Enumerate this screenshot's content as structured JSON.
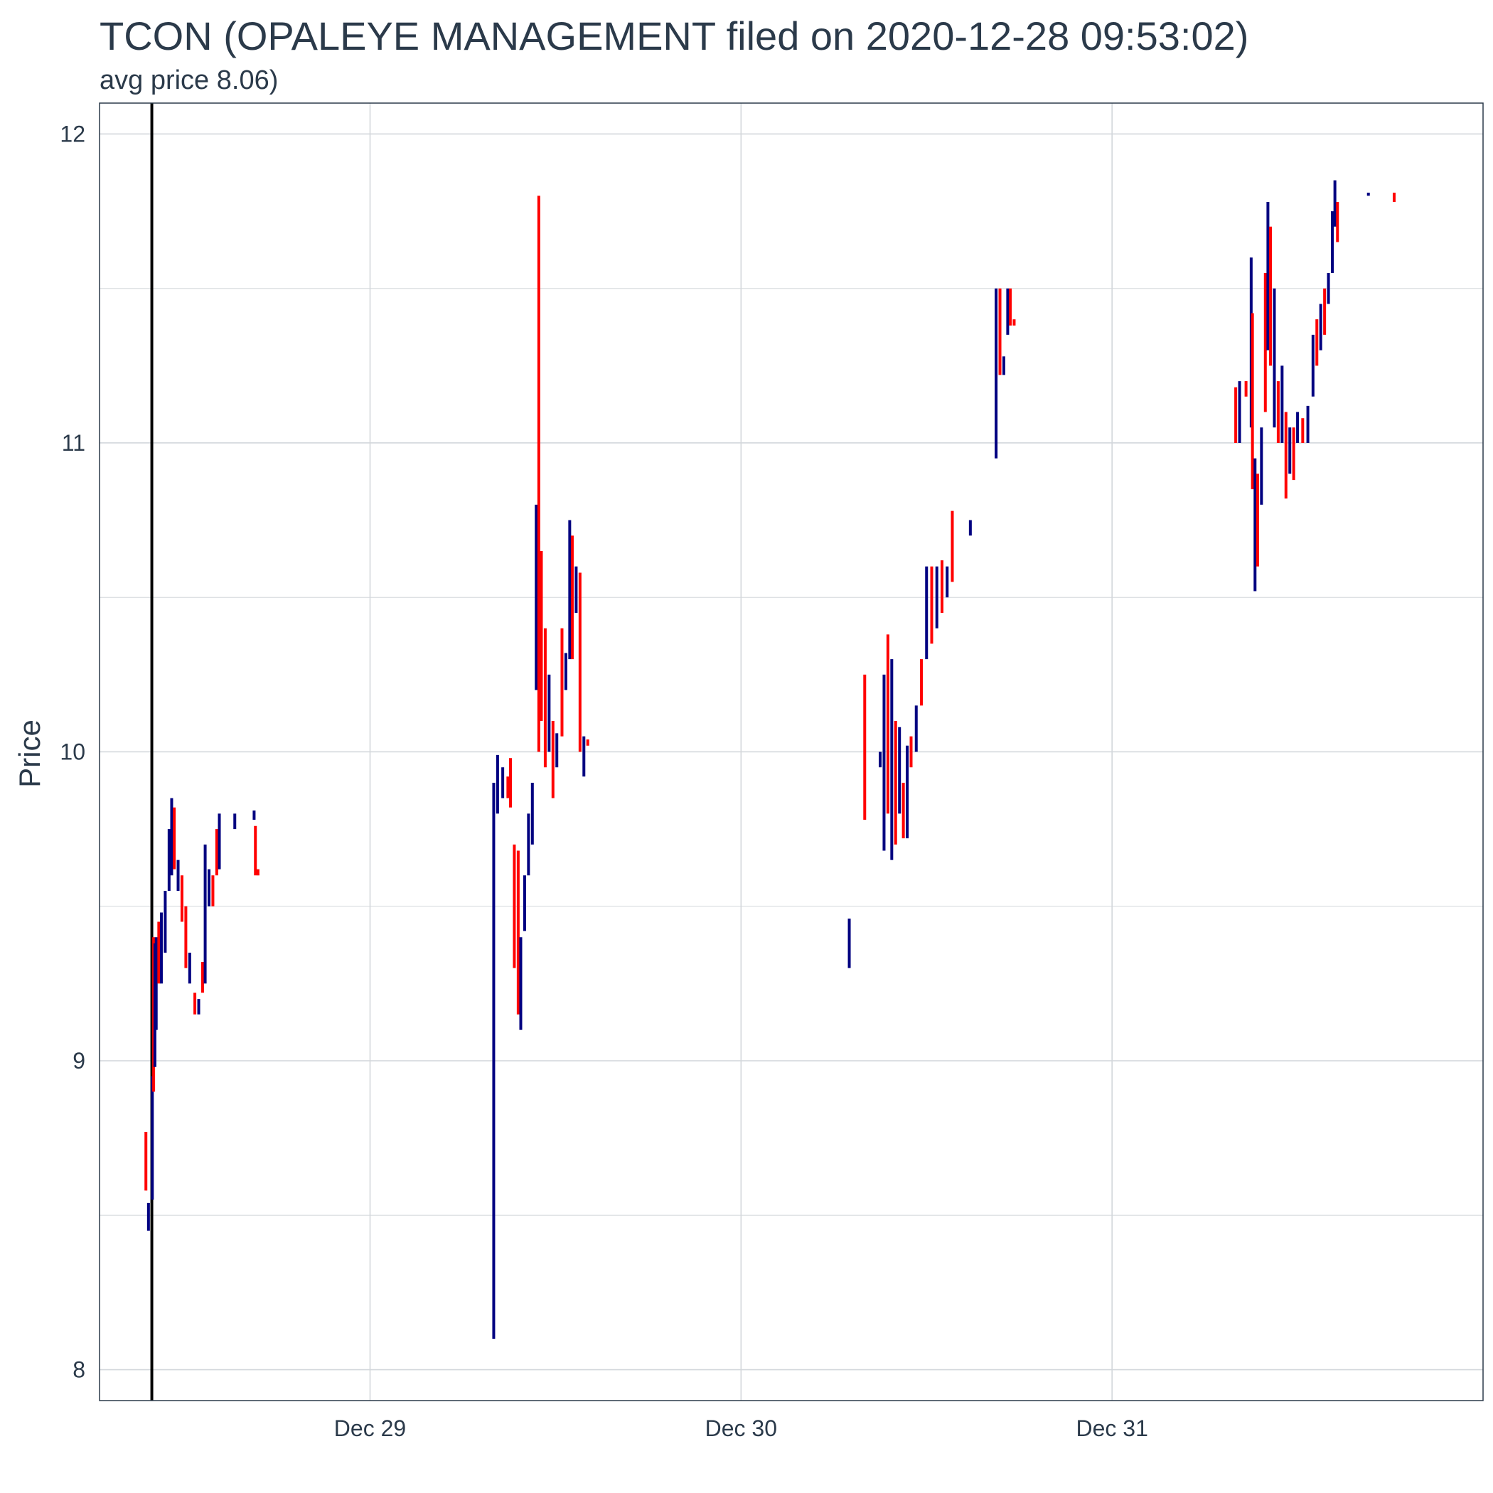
{
  "chart_data": {
    "type": "candlestick",
    "title": "TCON (OPALEYE MANAGEMENT filed on 2020-12-28 09:53:02)",
    "subtitle": "avg price 8.06)",
    "xlabel": "",
    "ylabel": "Price",
    "x_range": [
      "2020-12-28 06:30",
      "2021-01-01 00:00"
    ],
    "ylim": [
      7.9,
      12.1
    ],
    "y_ticks": [
      8,
      9,
      10,
      11,
      12
    ],
    "x_ticks": [
      {
        "label": "Dec 29",
        "value": "2020-12-29 00:00"
      },
      {
        "label": "Dec 30",
        "value": "2020-12-30 00:00"
      },
      {
        "label": "Dec 31",
        "value": "2020-12-31 00:00"
      }
    ],
    "grid": true,
    "filing_marker": "2020-12-28 09:53",
    "colors": {
      "up": "#000080",
      "down": "#ff0000",
      "marker": "#000000",
      "grid": "#d3d7db",
      "frame": "#2b3a4a"
    },
    "bars": [
      {
        "t": "2020-12-28 09:30",
        "low": 8.58,
        "high": 8.77,
        "dir": "down"
      },
      {
        "t": "2020-12-28 09:40",
        "low": 8.45,
        "high": 8.54,
        "dir": "up"
      },
      {
        "t": "2020-12-28 09:55",
        "low": 8.55,
        "high": 8.95,
        "dir": "up"
      },
      {
        "t": "2020-12-28 10:00",
        "low": 8.9,
        "high": 9.4,
        "dir": "down"
      },
      {
        "t": "2020-12-28 10:05",
        "low": 8.98,
        "high": 9.38,
        "dir": "up"
      },
      {
        "t": "2020-12-28 10:10",
        "low": 9.1,
        "high": 9.4,
        "dir": "up"
      },
      {
        "t": "2020-12-28 10:20",
        "low": 9.25,
        "high": 9.45,
        "dir": "down"
      },
      {
        "t": "2020-12-28 10:30",
        "low": 9.25,
        "high": 9.48,
        "dir": "up"
      },
      {
        "t": "2020-12-28 10:45",
        "low": 9.35,
        "high": 9.55,
        "dir": "up"
      },
      {
        "t": "2020-12-28 11:00",
        "low": 9.55,
        "high": 9.75,
        "dir": "up"
      },
      {
        "t": "2020-12-28 11:10",
        "low": 9.6,
        "high": 9.85,
        "dir": "up"
      },
      {
        "t": "2020-12-28 11:20",
        "low": 9.62,
        "high": 9.82,
        "dir": "down"
      },
      {
        "t": "2020-12-28 11:35",
        "low": 9.55,
        "high": 9.65,
        "dir": "up"
      },
      {
        "t": "2020-12-28 11:50",
        "low": 9.45,
        "high": 9.6,
        "dir": "down"
      },
      {
        "t": "2020-12-28 12:05",
        "low": 9.3,
        "high": 9.5,
        "dir": "down"
      },
      {
        "t": "2020-12-28 12:20",
        "low": 9.25,
        "high": 9.35,
        "dir": "up"
      },
      {
        "t": "2020-12-28 12:40",
        "low": 9.15,
        "high": 9.22,
        "dir": "down"
      },
      {
        "t": "2020-12-28 12:55",
        "low": 9.15,
        "high": 9.2,
        "dir": "up"
      },
      {
        "t": "2020-12-28 13:10",
        "low": 9.22,
        "high": 9.32,
        "dir": "down"
      },
      {
        "t": "2020-12-28 13:20",
        "low": 9.25,
        "high": 9.7,
        "dir": "up"
      },
      {
        "t": "2020-12-28 13:35",
        "low": 9.5,
        "high": 9.62,
        "dir": "up"
      },
      {
        "t": "2020-12-28 13:50",
        "low": 9.5,
        "high": 9.6,
        "dir": "down"
      },
      {
        "t": "2020-12-28 14:05",
        "low": 9.6,
        "high": 9.75,
        "dir": "down"
      },
      {
        "t": "2020-12-28 14:15",
        "low": 9.62,
        "high": 9.8,
        "dir": "up"
      },
      {
        "t": "2020-12-28 15:15",
        "low": 9.75,
        "high": 9.8,
        "dir": "up"
      },
      {
        "t": "2020-12-28 16:30",
        "low": 9.78,
        "high": 9.81,
        "dir": "up"
      },
      {
        "t": "2020-12-28 16:35",
        "low": 9.6,
        "high": 9.76,
        "dir": "down"
      },
      {
        "t": "2020-12-28 16:45",
        "low": 9.6,
        "high": 9.62,
        "dir": "down"
      },
      {
        "t": "2020-12-29 08:00",
        "low": 8.1,
        "high": 9.9,
        "dir": "up"
      },
      {
        "t": "2020-12-29 08:15",
        "low": 9.8,
        "high": 9.99,
        "dir": "up"
      },
      {
        "t": "2020-12-29 08:35",
        "low": 9.85,
        "high": 9.95,
        "dir": "up"
      },
      {
        "t": "2020-12-29 08:55",
        "low": 9.85,
        "high": 9.92,
        "dir": "down"
      },
      {
        "t": "2020-12-29 09:05",
        "low": 9.82,
        "high": 9.98,
        "dir": "down"
      },
      {
        "t": "2020-12-29 09:20",
        "low": 9.3,
        "high": 9.7,
        "dir": "down"
      },
      {
        "t": "2020-12-29 09:35",
        "low": 9.15,
        "high": 9.68,
        "dir": "down"
      },
      {
        "t": "2020-12-29 09:45",
        "low": 9.1,
        "high": 9.4,
        "dir": "up"
      },
      {
        "t": "2020-12-29 10:00",
        "low": 9.42,
        "high": 9.6,
        "dir": "up"
      },
      {
        "t": "2020-12-29 10:15",
        "low": 9.6,
        "high": 9.8,
        "dir": "up"
      },
      {
        "t": "2020-12-29 10:30",
        "low": 9.7,
        "high": 9.9,
        "dir": "up"
      },
      {
        "t": "2020-12-29 10:45",
        "low": 10.2,
        "high": 10.8,
        "dir": "up"
      },
      {
        "t": "2020-12-29 10:55",
        "low": 10.0,
        "high": 11.8,
        "dir": "down"
      },
      {
        "t": "2020-12-29 11:05",
        "low": 10.1,
        "high": 10.65,
        "dir": "down"
      },
      {
        "t": "2020-12-29 11:20",
        "low": 9.95,
        "high": 10.4,
        "dir": "down"
      },
      {
        "t": "2020-12-29 11:35",
        "low": 10.0,
        "high": 10.25,
        "dir": "up"
      },
      {
        "t": "2020-12-29 11:50",
        "low": 9.85,
        "high": 10.1,
        "dir": "down"
      },
      {
        "t": "2020-12-29 12:05",
        "low": 9.95,
        "high": 10.06,
        "dir": "up"
      },
      {
        "t": "2020-12-29 12:25",
        "low": 10.05,
        "high": 10.4,
        "dir": "down"
      },
      {
        "t": "2020-12-29 12:40",
        "low": 10.2,
        "high": 10.32,
        "dir": "up"
      },
      {
        "t": "2020-12-29 12:55",
        "low": 10.3,
        "high": 10.75,
        "dir": "up"
      },
      {
        "t": "2020-12-29 13:05",
        "low": 10.3,
        "high": 10.7,
        "dir": "down"
      },
      {
        "t": "2020-12-29 13:20",
        "low": 10.45,
        "high": 10.6,
        "dir": "up"
      },
      {
        "t": "2020-12-29 13:35",
        "low": 10.0,
        "high": 10.58,
        "dir": "down"
      },
      {
        "t": "2020-12-29 13:50",
        "low": 9.92,
        "high": 10.05,
        "dir": "up"
      },
      {
        "t": "2020-12-29 14:05",
        "low": 10.02,
        "high": 10.04,
        "dir": "down"
      },
      {
        "t": "2020-12-30 07:00",
        "low": 9.3,
        "high": 9.46,
        "dir": "up"
      },
      {
        "t": "2020-12-30 08:00",
        "low": 9.78,
        "high": 10.25,
        "dir": "down"
      },
      {
        "t": "2020-12-30 09:00",
        "low": 9.95,
        "high": 10.0,
        "dir": "up"
      },
      {
        "t": "2020-12-30 09:15",
        "low": 9.68,
        "high": 10.25,
        "dir": "up"
      },
      {
        "t": "2020-12-30 09:30",
        "low": 9.8,
        "high": 10.38,
        "dir": "down"
      },
      {
        "t": "2020-12-30 09:45",
        "low": 9.65,
        "high": 10.3,
        "dir": "up"
      },
      {
        "t": "2020-12-30 10:00",
        "low": 9.7,
        "high": 10.1,
        "dir": "down"
      },
      {
        "t": "2020-12-30 10:15",
        "low": 9.8,
        "high": 10.08,
        "dir": "up"
      },
      {
        "t": "2020-12-30 10:30",
        "low": 9.72,
        "high": 9.9,
        "dir": "down"
      },
      {
        "t": "2020-12-30 10:45",
        "low": 9.72,
        "high": 10.02,
        "dir": "up"
      },
      {
        "t": "2020-12-30 11:00",
        "low": 9.95,
        "high": 10.05,
        "dir": "down"
      },
      {
        "t": "2020-12-30 11:20",
        "low": 10.0,
        "high": 10.15,
        "dir": "up"
      },
      {
        "t": "2020-12-30 11:40",
        "low": 10.15,
        "high": 10.3,
        "dir": "down"
      },
      {
        "t": "2020-12-30 12:00",
        "low": 10.3,
        "high": 10.6,
        "dir": "up"
      },
      {
        "t": "2020-12-30 12:20",
        "low": 10.35,
        "high": 10.6,
        "dir": "down"
      },
      {
        "t": "2020-12-30 12:40",
        "low": 10.4,
        "high": 10.6,
        "dir": "up"
      },
      {
        "t": "2020-12-30 13:00",
        "low": 10.45,
        "high": 10.62,
        "dir": "down"
      },
      {
        "t": "2020-12-30 13:20",
        "low": 10.5,
        "high": 10.6,
        "dir": "up"
      },
      {
        "t": "2020-12-30 13:40",
        "low": 10.55,
        "high": 10.78,
        "dir": "down"
      },
      {
        "t": "2020-12-30 14:50",
        "low": 10.7,
        "high": 10.75,
        "dir": "up"
      },
      {
        "t": "2020-12-30 16:30",
        "low": 10.95,
        "high": 11.5,
        "dir": "up"
      },
      {
        "t": "2020-12-30 16:45",
        "low": 11.22,
        "high": 11.5,
        "dir": "down"
      },
      {
        "t": "2020-12-30 17:00",
        "low": 11.22,
        "high": 11.28,
        "dir": "up"
      },
      {
        "t": "2020-12-30 17:15",
        "low": 11.35,
        "high": 11.5,
        "dir": "up"
      },
      {
        "t": "2020-12-30 17:25",
        "low": 11.38,
        "high": 11.5,
        "dir": "down"
      },
      {
        "t": "2020-12-30 17:40",
        "low": 11.38,
        "high": 11.4,
        "dir": "down"
      },
      {
        "t": "2020-12-31 08:00",
        "low": 11.0,
        "high": 11.18,
        "dir": "down"
      },
      {
        "t": "2020-12-31 08:15",
        "low": 11.0,
        "high": 11.2,
        "dir": "up"
      },
      {
        "t": "2020-12-31 08:40",
        "low": 11.15,
        "high": 11.2,
        "dir": "down"
      },
      {
        "t": "2020-12-31 09:00",
        "low": 11.05,
        "high": 11.6,
        "dir": "up"
      },
      {
        "t": "2020-12-31 09:05",
        "low": 10.85,
        "high": 11.42,
        "dir": "down"
      },
      {
        "t": "2020-12-31 09:15",
        "low": 10.52,
        "high": 10.95,
        "dir": "up"
      },
      {
        "t": "2020-12-31 09:25",
        "low": 10.6,
        "high": 10.9,
        "dir": "down"
      },
      {
        "t": "2020-12-31 09:40",
        "low": 10.8,
        "high": 11.05,
        "dir": "up"
      },
      {
        "t": "2020-12-31 09:55",
        "low": 11.1,
        "high": 11.55,
        "dir": "down"
      },
      {
        "t": "2020-12-31 10:05",
        "low": 11.3,
        "high": 11.78,
        "dir": "up"
      },
      {
        "t": "2020-12-31 10:15",
        "low": 11.25,
        "high": 11.7,
        "dir": "down"
      },
      {
        "t": "2020-12-31 10:30",
        "low": 11.05,
        "high": 11.5,
        "dir": "up"
      },
      {
        "t": "2020-12-31 10:45",
        "low": 11.0,
        "high": 11.2,
        "dir": "down"
      },
      {
        "t": "2020-12-31 11:00",
        "low": 11.0,
        "high": 11.25,
        "dir": "up"
      },
      {
        "t": "2020-12-31 11:15",
        "low": 10.82,
        "high": 11.1,
        "dir": "down"
      },
      {
        "t": "2020-12-31 11:30",
        "low": 10.9,
        "high": 11.05,
        "dir": "up"
      },
      {
        "t": "2020-12-31 11:45",
        "low": 10.88,
        "high": 11.05,
        "dir": "down"
      },
      {
        "t": "2020-12-31 12:00",
        "low": 11.0,
        "high": 11.1,
        "dir": "up"
      },
      {
        "t": "2020-12-31 12:20",
        "low": 11.0,
        "high": 11.08,
        "dir": "down"
      },
      {
        "t": "2020-12-31 12:40",
        "low": 11.0,
        "high": 11.12,
        "dir": "up"
      },
      {
        "t": "2020-12-31 13:00",
        "low": 11.15,
        "high": 11.35,
        "dir": "up"
      },
      {
        "t": "2020-12-31 13:15",
        "low": 11.25,
        "high": 11.4,
        "dir": "down"
      },
      {
        "t": "2020-12-31 13:30",
        "low": 11.3,
        "high": 11.45,
        "dir": "up"
      },
      {
        "t": "2020-12-31 13:45",
        "low": 11.35,
        "high": 11.5,
        "dir": "down"
      },
      {
        "t": "2020-12-31 14:00",
        "low": 11.45,
        "high": 11.55,
        "dir": "up"
      },
      {
        "t": "2020-12-31 14:15",
        "low": 11.55,
        "high": 11.75,
        "dir": "up"
      },
      {
        "t": "2020-12-31 14:25",
        "low": 11.7,
        "high": 11.85,
        "dir": "up"
      },
      {
        "t": "2020-12-31 14:35",
        "low": 11.65,
        "high": 11.78,
        "dir": "down"
      },
      {
        "t": "2020-12-31 16:35",
        "low": 11.8,
        "high": 11.81,
        "dir": "up"
      },
      {
        "t": "2020-12-31 18:15",
        "low": 11.78,
        "high": 11.81,
        "dir": "down"
      }
    ]
  }
}
